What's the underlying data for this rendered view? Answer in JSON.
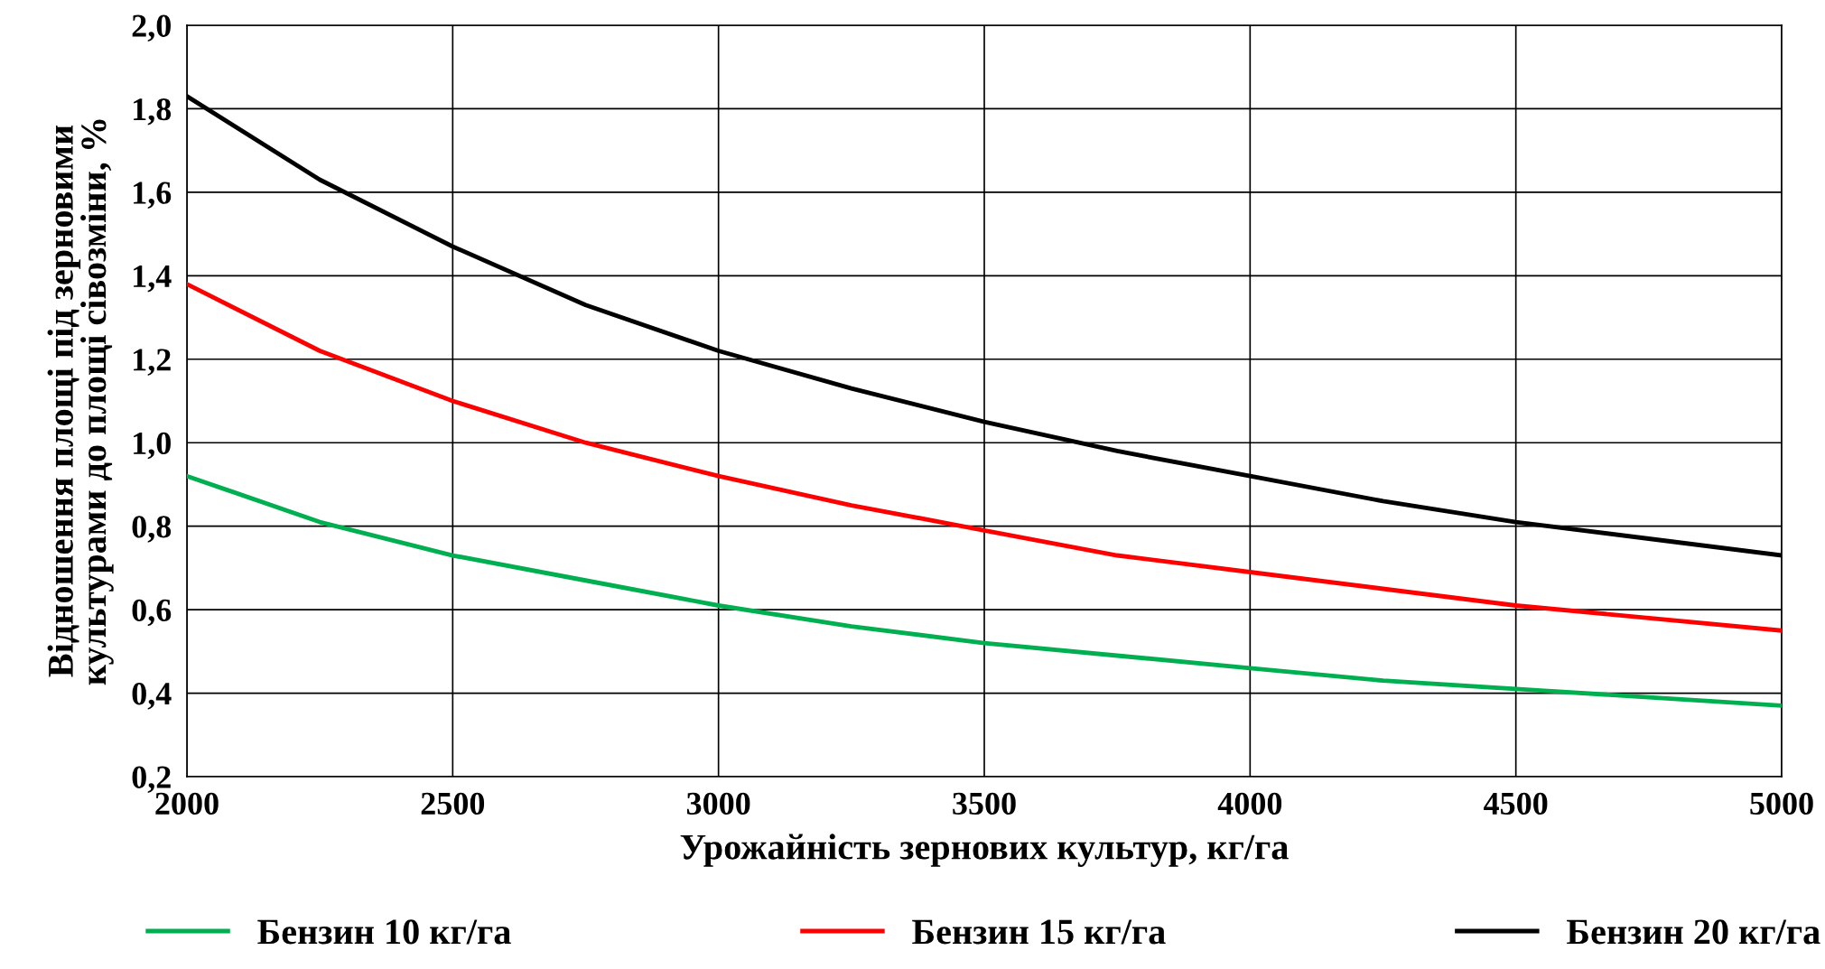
{
  "chart_data": {
    "type": "line",
    "xlabel": "Урожайність зернових культур, кг/га",
    "ylabel": "Відношення площі під зерновими\nкультурами до площі сівозміни, %",
    "x": [
      2000,
      2250,
      2500,
      2750,
      3000,
      3250,
      3500,
      3750,
      4000,
      4250,
      4500,
      4750,
      5000
    ],
    "series": [
      {
        "name": "Бензин 10 кг/га",
        "color": "#00b050",
        "values": [
          0.92,
          0.81,
          0.73,
          0.67,
          0.61,
          0.56,
          0.52,
          0.49,
          0.46,
          0.43,
          0.41,
          0.39,
          0.37
        ]
      },
      {
        "name": "Бензин 15 кг/га",
        "color": "#ff0000",
        "values": [
          1.38,
          1.22,
          1.1,
          1.0,
          0.92,
          0.85,
          0.79,
          0.73,
          0.69,
          0.65,
          0.61,
          0.58,
          0.55
        ]
      },
      {
        "name": "Бензин 20 кг/га",
        "color": "#000000",
        "values": [
          1.83,
          1.63,
          1.47,
          1.33,
          1.22,
          1.13,
          1.05,
          0.98,
          0.92,
          0.86,
          0.81,
          0.77,
          0.73
        ]
      }
    ],
    "xlim": [
      2000,
      5000
    ],
    "xticks": [
      2000,
      2500,
      3000,
      3500,
      4000,
      4500,
      5000
    ],
    "ylim": [
      0.2,
      2.0
    ],
    "yticks": [
      {
        "value": 0.2,
        "label": "0,2"
      },
      {
        "value": 0.4,
        "label": "0,4"
      },
      {
        "value": 0.6,
        "label": "0,6"
      },
      {
        "value": 0.8,
        "label": "0,8"
      },
      {
        "value": 1.0,
        "label": "1,0"
      },
      {
        "value": 1.2,
        "label": "1,2"
      },
      {
        "value": 1.4,
        "label": "1,4"
      },
      {
        "value": 1.6,
        "label": "1,6"
      },
      {
        "value": 1.8,
        "label": "1,8"
      },
      {
        "value": 2.0,
        "label": "2,0"
      }
    ],
    "grid": true,
    "legend": "bottom",
    "line_style": "solid",
    "marker": "none"
  }
}
